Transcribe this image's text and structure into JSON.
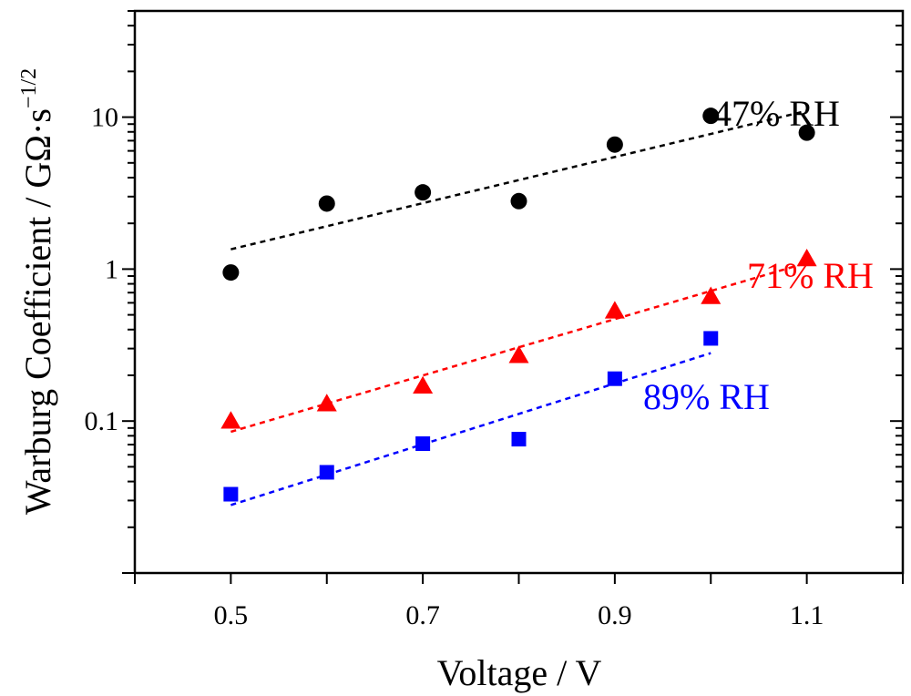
{
  "chart_data": {
    "type": "scatter",
    "title": "",
    "xlabel": "Voltage / V",
    "ylabel": "Warburg Coefficient / GΩ·s",
    "ylabel_exponent": "−1/2",
    "xlim": [
      0.4,
      1.2
    ],
    "ylim": [
      0.01,
      50
    ],
    "yscale": "log",
    "x_ticks": [
      0.5,
      0.7,
      0.9,
      1.1
    ],
    "x_tick_labels": [
      "0.5",
      "0.7",
      "0.9",
      "1.1"
    ],
    "y_ticks": [
      0.1,
      1,
      10
    ],
    "y_tick_labels": [
      "0.1",
      "1",
      "10"
    ],
    "grid": false,
    "series": [
      {
        "name": "47% RH",
        "color": "#000000",
        "marker": "circle",
        "x": [
          0.5,
          0.6,
          0.7,
          0.8,
          0.9,
          1.0,
          1.1
        ],
        "y": [
          0.95,
          2.7,
          3.2,
          2.8,
          6.6,
          10.2,
          7.9
        ],
        "fit": {
          "x": [
            0.5,
            1.1
          ],
          "y": [
            1.35,
            11.0
          ]
        }
      },
      {
        "name": "71% RH",
        "color": "#ff0000",
        "marker": "triangle",
        "x": [
          0.5,
          0.6,
          0.7,
          0.8,
          0.9,
          1.0,
          1.1
        ],
        "y": [
          0.1,
          0.13,
          0.17,
          0.27,
          0.53,
          0.66,
          1.17
        ],
        "fit": {
          "x": [
            0.5,
            1.1
          ],
          "y": [
            0.085,
            1.1
          ]
        }
      },
      {
        "name": "89% RH",
        "color": "#0000ff",
        "marker": "square",
        "x": [
          0.5,
          0.6,
          0.7,
          0.8,
          0.9,
          1.0
        ],
        "y": [
          0.033,
          0.046,
          0.071,
          0.076,
          0.19,
          0.35
        ],
        "fit": {
          "x": [
            0.5,
            1.0
          ],
          "y": [
            0.028,
            0.28
          ]
        }
      }
    ]
  }
}
